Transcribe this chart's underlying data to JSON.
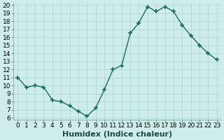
{
  "x": [
    0,
    1,
    2,
    3,
    4,
    5,
    6,
    7,
    8,
    9,
    10,
    11,
    12,
    13,
    14,
    15,
    16,
    17,
    18,
    19,
    20,
    21,
    22,
    23
  ],
  "y": [
    11.0,
    9.8,
    10.0,
    9.8,
    8.2,
    8.0,
    7.5,
    6.8,
    6.2,
    7.2,
    9.5,
    12.0,
    12.5,
    16.5,
    17.8,
    19.8,
    19.2,
    19.8,
    19.2,
    17.5,
    16.2,
    15.0,
    14.0,
    13.2
  ],
  "xlabel": "Humidex (Indice chaleur)",
  "ylim_min": 5.8,
  "ylim_max": 20.3,
  "xlim_min": -0.5,
  "xlim_max": 23.5,
  "yticks": [
    6,
    7,
    8,
    9,
    10,
    11,
    12,
    13,
    14,
    15,
    16,
    17,
    18,
    19,
    20
  ],
  "xticks": [
    0,
    1,
    2,
    3,
    4,
    5,
    6,
    7,
    8,
    9,
    10,
    11,
    12,
    13,
    14,
    15,
    16,
    17,
    18,
    19,
    20,
    21,
    22,
    23
  ],
  "line_color": "#1a6b5a",
  "marker_color": "#1a6b5a",
  "bg_color": "#cdecea",
  "grid_color": "#b0d8d2",
  "xlabel_fontsize": 8,
  "tick_fontsize": 6.5
}
